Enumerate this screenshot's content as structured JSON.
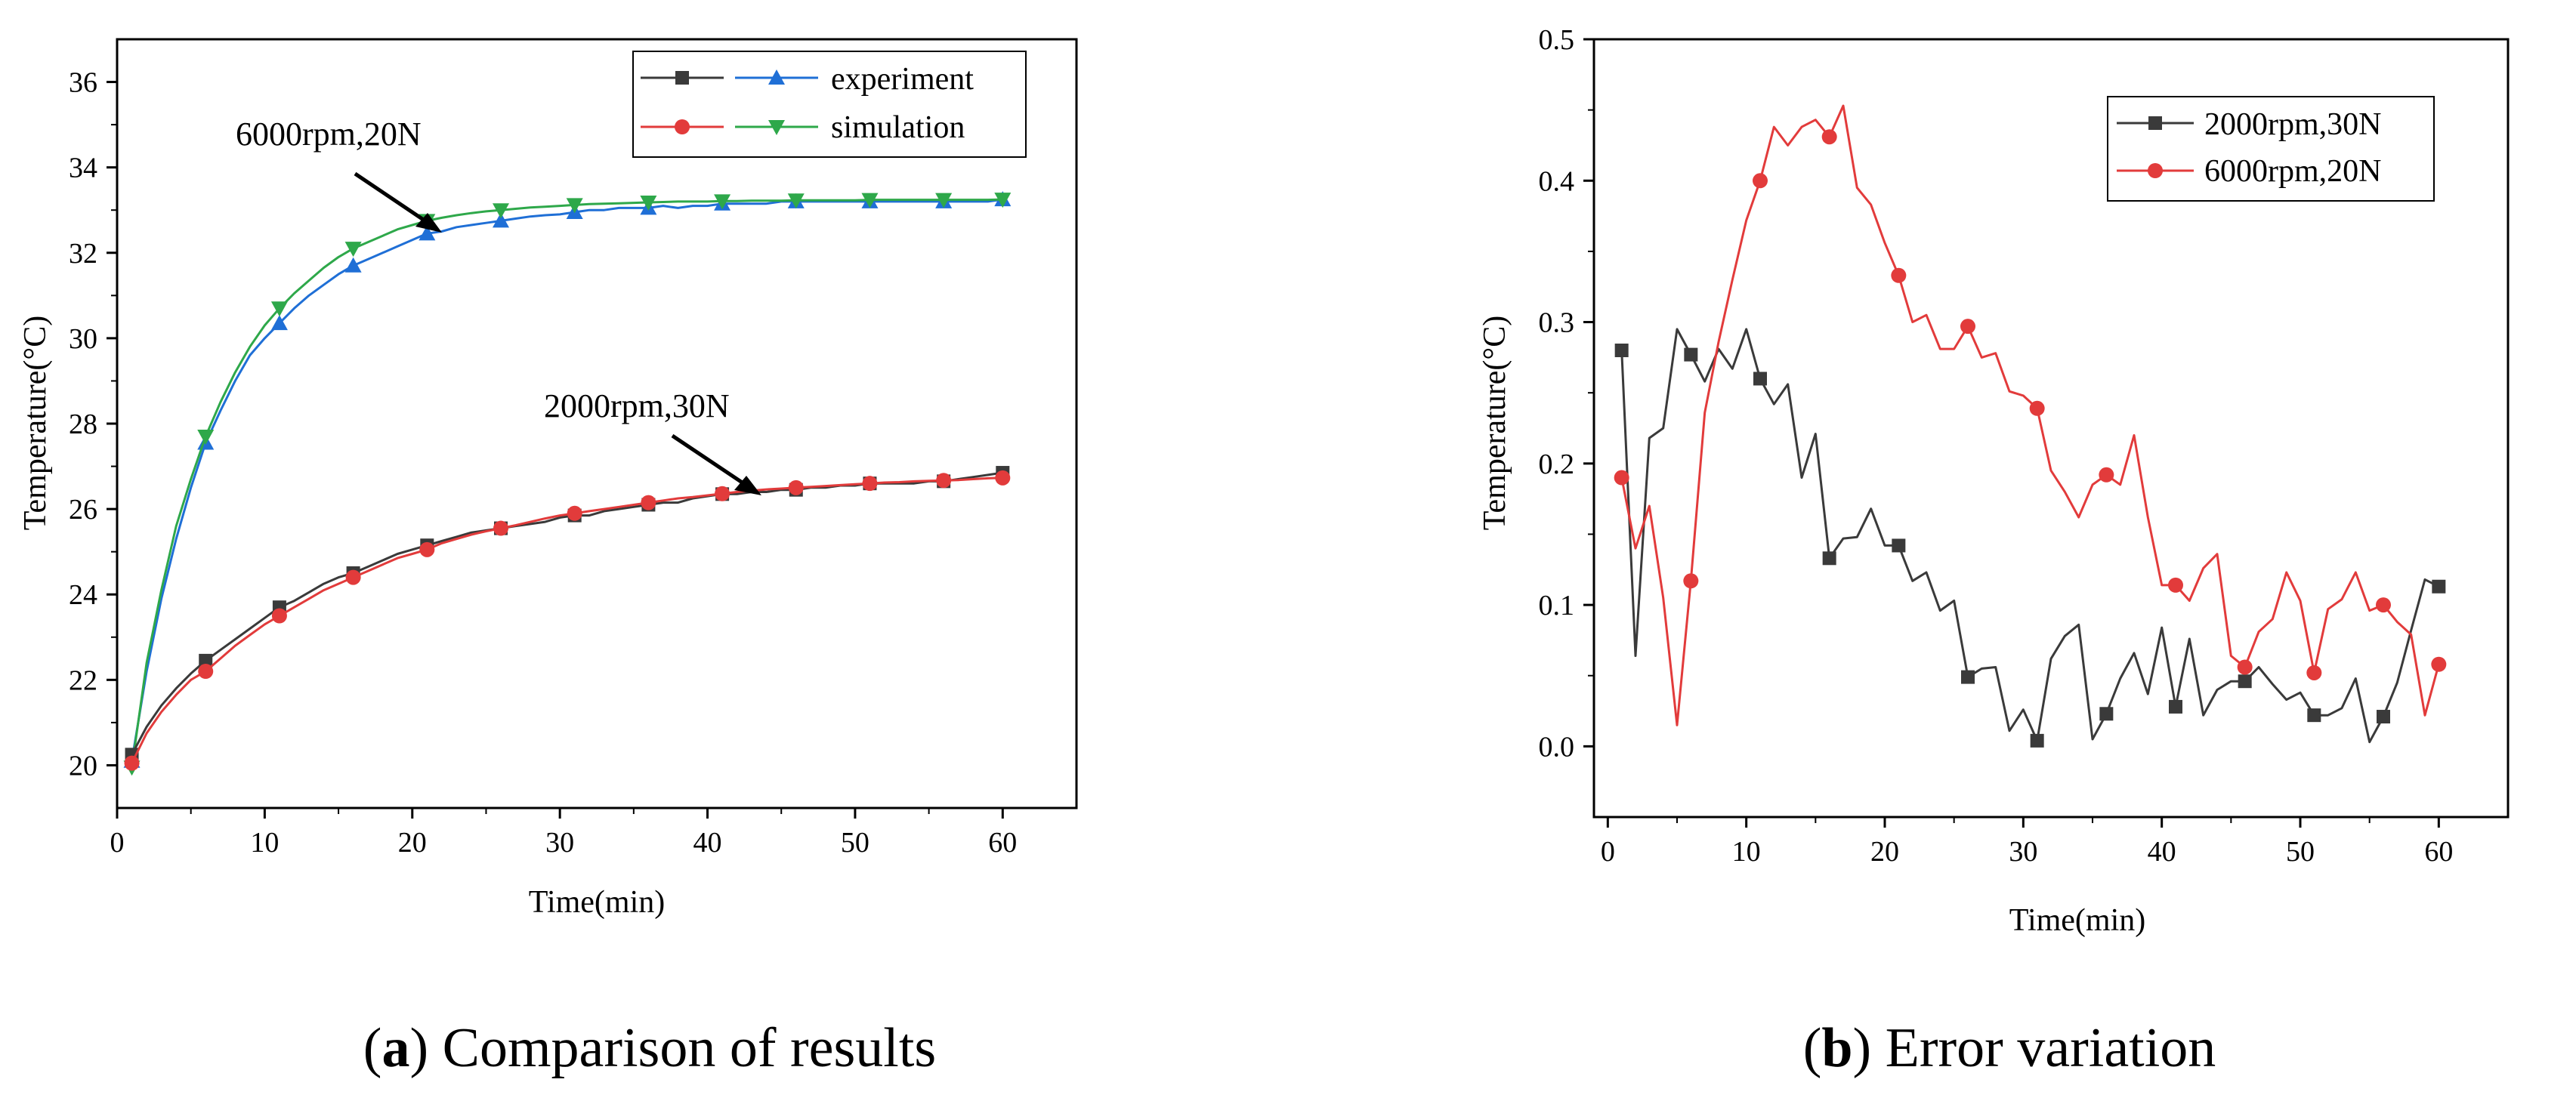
{
  "chart_data": [
    {
      "id": "a",
      "type": "line",
      "caption_label": "a",
      "caption_text": "Comparison of results",
      "xlabel": "Time(min)",
      "ylabel": "Temperature(°C)",
      "xlim": [
        0,
        65
      ],
      "ylim": [
        19,
        37
      ],
      "xticks": [
        "0",
        "10",
        "20",
        "30",
        "40",
        "50",
        "60"
      ],
      "yticks": [
        "20",
        "22",
        "24",
        "26",
        "28",
        "30",
        "32",
        "34",
        "36"
      ],
      "legend": {
        "placement": "top-right",
        "labels": [
          "experiment",
          "simulation"
        ]
      },
      "annotations": [
        "6000rpm,20N",
        "2000rpm,30N"
      ],
      "series": [
        {
          "name": "experiment 6000rpm,20N",
          "color": "#1f6fd6",
          "marker": "triangle-up",
          "x": [
            1,
            2,
            3,
            4,
            5,
            6,
            7,
            8,
            9,
            10,
            11,
            12,
            13,
            14,
            15,
            16,
            17,
            18,
            19,
            20,
            21,
            22,
            23,
            24,
            25,
            26,
            27,
            28,
            29,
            30,
            31,
            32,
            33,
            34,
            35,
            36,
            37,
            38,
            39,
            40,
            41,
            42,
            43,
            44,
            45,
            46,
            47,
            48,
            49,
            50,
            51,
            52,
            53,
            54,
            55,
            56,
            57,
            58,
            59,
            60
          ],
          "y": [
            20.1,
            22.2,
            23.9,
            25.3,
            26.5,
            27.55,
            28.3,
            29.0,
            29.6,
            30.0,
            30.35,
            30.7,
            31.0,
            31.25,
            31.5,
            31.7,
            31.85,
            32.0,
            32.15,
            32.3,
            32.45,
            32.5,
            32.6,
            32.65,
            32.7,
            32.75,
            32.8,
            32.85,
            32.88,
            32.9,
            32.95,
            33.0,
            33.0,
            33.05,
            33.05,
            33.05,
            33.1,
            33.05,
            33.1,
            33.1,
            33.15,
            33.15,
            33.15,
            33.15,
            33.2,
            33.2,
            33.2,
            33.2,
            33.2,
            33.2,
            33.2,
            33.2,
            33.2,
            33.2,
            33.2,
            33.2,
            33.2,
            33.2,
            33.2,
            33.25
          ],
          "marker_every": 5
        },
        {
          "name": "simulation 6000rpm,20N",
          "color": "#2ea84a",
          "marker": "triangle-down",
          "x": [
            1,
            2,
            3,
            4,
            5,
            6,
            7,
            8,
            9,
            10,
            11,
            12,
            13,
            14,
            15,
            16,
            17,
            18,
            19,
            20,
            21,
            22,
            23,
            24,
            25,
            26,
            27,
            28,
            29,
            30,
            31,
            32,
            33,
            34,
            35,
            36,
            37,
            38,
            39,
            40,
            41,
            42,
            43,
            44,
            45,
            46,
            47,
            48,
            49,
            50,
            51,
            52,
            53,
            54,
            55,
            56,
            57,
            58,
            59,
            60
          ],
          "y": [
            19.95,
            22.4,
            24.1,
            25.6,
            26.7,
            27.7,
            28.5,
            29.2,
            29.8,
            30.3,
            30.7,
            31.05,
            31.35,
            31.65,
            31.9,
            32.1,
            32.25,
            32.4,
            32.55,
            32.65,
            32.75,
            32.82,
            32.88,
            32.93,
            32.97,
            33.0,
            33.03,
            33.06,
            33.08,
            33.1,
            33.12,
            33.14,
            33.15,
            33.16,
            33.17,
            33.18,
            33.19,
            33.2,
            33.2,
            33.2,
            33.21,
            33.21,
            33.22,
            33.22,
            33.22,
            33.23,
            33.23,
            33.23,
            33.23,
            33.23,
            33.24,
            33.24,
            33.24,
            33.24,
            33.24,
            33.24,
            33.24,
            33.24,
            33.24,
            33.25
          ],
          "marker_every": 5
        },
        {
          "name": "experiment 2000rpm,30N",
          "color": "#3a3a3a",
          "marker": "square",
          "x": [
            1,
            2,
            3,
            4,
            5,
            6,
            7,
            8,
            9,
            10,
            11,
            12,
            13,
            14,
            15,
            16,
            17,
            18,
            19,
            20,
            21,
            22,
            23,
            24,
            25,
            26,
            27,
            28,
            29,
            30,
            31,
            32,
            33,
            34,
            35,
            36,
            37,
            38,
            39,
            40,
            41,
            42,
            43,
            44,
            45,
            46,
            47,
            48,
            49,
            50,
            51,
            52,
            53,
            54,
            55,
            56,
            57,
            58,
            59,
            60
          ],
          "y": [
            20.25,
            20.9,
            21.4,
            21.8,
            22.15,
            22.45,
            22.7,
            22.95,
            23.2,
            23.45,
            23.7,
            23.85,
            24.05,
            24.25,
            24.4,
            24.5,
            24.65,
            24.8,
            24.95,
            25.05,
            25.15,
            25.25,
            25.35,
            25.45,
            25.5,
            25.55,
            25.6,
            25.65,
            25.7,
            25.8,
            25.85,
            25.85,
            25.95,
            26.0,
            26.05,
            26.1,
            26.15,
            26.15,
            26.25,
            26.3,
            26.35,
            26.35,
            26.4,
            26.4,
            26.45,
            26.45,
            26.5,
            26.5,
            26.55,
            26.55,
            26.6,
            26.6,
            26.6,
            26.6,
            26.65,
            26.65,
            26.7,
            26.75,
            26.8,
            26.85
          ],
          "marker_every": 5
        },
        {
          "name": "simulation 2000rpm,30N",
          "color": "#e23b3b",
          "marker": "circle",
          "x": [
            1,
            2,
            3,
            4,
            5,
            6,
            7,
            8,
            9,
            10,
            11,
            12,
            13,
            14,
            15,
            16,
            17,
            18,
            19,
            20,
            21,
            22,
            23,
            24,
            25,
            26,
            27,
            28,
            29,
            30,
            31,
            32,
            33,
            34,
            35,
            36,
            37,
            38,
            39,
            40,
            41,
            42,
            43,
            44,
            45,
            46,
            47,
            48,
            49,
            50,
            51,
            52,
            53,
            54,
            55,
            56,
            57,
            58,
            59,
            60
          ],
          "y": [
            20.05,
            20.75,
            21.25,
            21.65,
            22.0,
            22.2,
            22.5,
            22.8,
            23.05,
            23.3,
            23.5,
            23.7,
            23.9,
            24.1,
            24.25,
            24.4,
            24.55,
            24.7,
            24.85,
            24.95,
            25.05,
            25.2,
            25.3,
            25.4,
            25.48,
            25.55,
            25.62,
            25.7,
            25.78,
            25.85,
            25.9,
            25.95,
            26.0,
            26.05,
            26.1,
            26.15,
            26.2,
            26.25,
            26.28,
            26.32,
            26.36,
            26.4,
            26.43,
            26.46,
            26.48,
            26.5,
            26.52,
            26.54,
            26.56,
            26.58,
            26.6,
            26.62,
            26.63,
            26.65,
            26.66,
            26.67,
            26.68,
            26.7,
            26.72,
            26.73
          ],
          "marker_every": 5
        }
      ]
    },
    {
      "id": "b",
      "type": "line",
      "caption_label": "b",
      "caption_text": "Error variation",
      "xlabel": "Time(min)",
      "ylabel": "Temperature(°C)",
      "xlim": [
        -1,
        65
      ],
      "ylim": [
        -0.05,
        0.5
      ],
      "xticks": [
        "0",
        "10",
        "20",
        "30",
        "40",
        "50",
        "60"
      ],
      "yticks": [
        "0.0",
        "0.1",
        "0.2",
        "0.3",
        "0.4",
        "0.5"
      ],
      "legend": {
        "placement": "top-right",
        "labels": [
          "2000rpm,30N",
          "6000rpm,20N"
        ]
      },
      "series": [
        {
          "name": "2000rpm,30N",
          "color": "#3a3a3a",
          "marker": "square",
          "x": [
            1,
            2,
            3,
            4,
            5,
            6,
            7,
            8,
            9,
            10,
            11,
            12,
            13,
            14,
            15,
            16,
            17,
            18,
            19,
            20,
            21,
            22,
            23,
            24,
            25,
            26,
            27,
            28,
            29,
            30,
            31,
            32,
            33,
            34,
            35,
            36,
            37,
            38,
            39,
            40,
            41,
            42,
            43,
            44,
            45,
            46,
            47,
            48,
            49,
            50,
            51,
            52,
            53,
            54,
            55,
            56,
            57,
            58,
            59,
            60
          ],
          "y": [
            0.28,
            0.064,
            0.218,
            0.225,
            0.295,
            0.277,
            0.258,
            0.281,
            0.267,
            0.295,
            0.26,
            0.242,
            0.256,
            0.19,
            0.221,
            0.133,
            0.147,
            0.148,
            0.168,
            0.142,
            0.142,
            0.117,
            0.123,
            0.096,
            0.103,
            0.049,
            0.055,
            0.056,
            0.011,
            0.026,
            0.004,
            0.062,
            0.078,
            0.086,
            0.005,
            0.023,
            0.048,
            0.066,
            0.037,
            0.084,
            0.028,
            0.076,
            0.022,
            0.04,
            0.046,
            0.046,
            0.056,
            0.044,
            0.033,
            0.038,
            0.022,
            0.022,
            0.027,
            0.048,
            0.003,
            0.021,
            0.045,
            0.082,
            0.118,
            0.113
          ],
          "marker_every": 5
        },
        {
          "name": "6000rpm,20N",
          "color": "#e23b3b",
          "marker": "circle",
          "x": [
            1,
            2,
            3,
            4,
            5,
            6,
            7,
            8,
            9,
            10,
            11,
            12,
            13,
            14,
            15,
            16,
            17,
            18,
            19,
            20,
            21,
            22,
            23,
            24,
            25,
            26,
            27,
            28,
            29,
            30,
            31,
            32,
            33,
            34,
            35,
            36,
            37,
            38,
            39,
            40,
            41,
            42,
            43,
            44,
            45,
            46,
            47,
            48,
            49,
            50,
            51,
            52,
            53,
            54,
            55,
            56,
            57,
            58,
            59,
            60
          ],
          "y": [
            0.19,
            0.14,
            0.17,
            0.105,
            0.015,
            0.117,
            0.236,
            0.286,
            0.33,
            0.372,
            0.4,
            0.438,
            0.425,
            0.438,
            0.443,
            0.431,
            0.453,
            0.395,
            0.383,
            0.356,
            0.333,
            0.3,
            0.305,
            0.281,
            0.281,
            0.297,
            0.275,
            0.278,
            0.251,
            0.248,
            0.239,
            0.195,
            0.18,
            0.162,
            0.185,
            0.192,
            0.185,
            0.22,
            0.162,
            0.114,
            0.114,
            0.103,
            0.126,
            0.136,
            0.064,
            0.056,
            0.081,
            0.09,
            0.123,
            0.103,
            0.052,
            0.097,
            0.104,
            0.123,
            0.096,
            0.1,
            0.088,
            0.079,
            0.022,
            0.058
          ],
          "marker_every": 5
        }
      ]
    }
  ]
}
